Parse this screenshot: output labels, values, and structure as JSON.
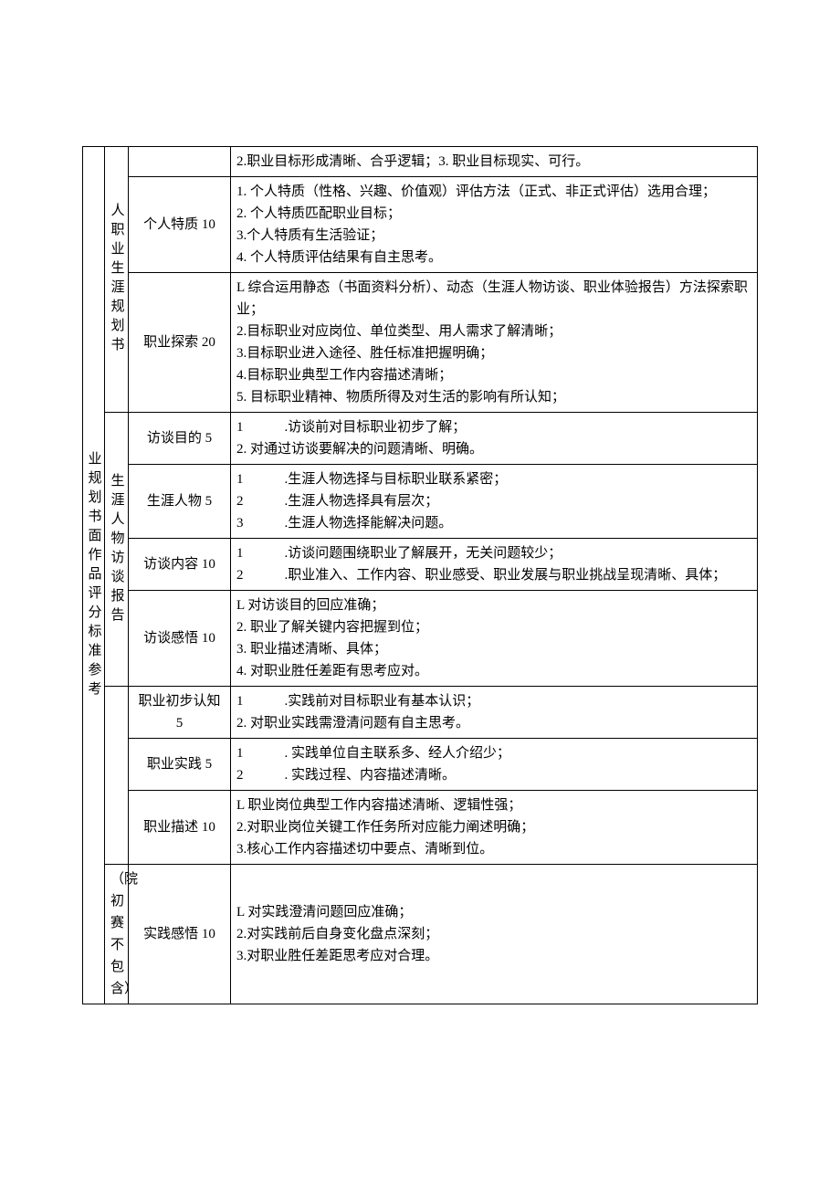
{
  "colA_label": "业规划书面作品评分标准参考",
  "colB_top_label": "人职业生涯规划书",
  "colB_mid_label": "生涯人物访谈报告",
  "colB_bottom_note": "（院初赛不包含）",
  "rows": [
    {
      "criteria": "",
      "detail": "2.职业目标形成清晰、合乎逻辑；3. 职业目标现实、可行。"
    },
    {
      "criteria": "个人特质 10",
      "detail": "1. 个人特质（性格、兴趣、价值观）评估方法（正式、非正式评估）选用合理；\n2. 个人特质匹配职业目标；\n3.个人特质有生活验证；\n4. 个人特质评估结果有自主思考。"
    },
    {
      "criteria": "职业探索 20",
      "detail": "L 综合运用静态（书面资料分析）、动态（生涯人物访谈、职业体验报告）方法探索职业；\n2.目标职业对应岗位、单位类型、用人需求了解清晰；\n3.目标职业进入途径、胜任标准把握明确；\n4.目标职业典型工作内容描述清晰；\n5. 目标职业精神、物质所得及对生活的影响有所认知；"
    },
    {
      "criteria": "访谈目的 5",
      "detail": "1　　　.访谈前对目标职业初步了解；\n2. 对通过访谈要解决的问题清晰、明确。"
    },
    {
      "criteria": "生涯人物 5",
      "detail": "1　　　.生涯人物选择与目标职业联系紧密；\n2　　　.生涯人物选择具有层次；\n3　　　.生涯人物选择能解决问题。"
    },
    {
      "criteria": "访谈内容 10",
      "detail": "1　　　.访谈问题围绕职业了解展开，无关问题较少；\n2　　　.职业准入、工作内容、职业感受、职业发展与职业挑战呈现清晰、具体；"
    },
    {
      "criteria": "访谈感悟 10",
      "detail": "L 对访谈目的回应准确；\n2. 职业了解关键内容把握到位；\n3. 职业描述清晰、具体；\n4. 对职业胜任差距有思考应对。"
    },
    {
      "criteria": "职业初步认知 5",
      "detail": "1　　　.实践前对目标职业有基本认识；\n2. 对职业实践需澄清问题有自主思考。"
    },
    {
      "criteria": "职业实践 5",
      "detail": "1　　　. 实践单位自主联系多、经人介绍少；\n2　　　. 实践过程、内容描述清晰。"
    },
    {
      "criteria": "职业描述 10",
      "detail": "L 职业岗位典型工作内容描述清晰、逻辑性强；\n2.对职业岗位关键工作任务所对应能力阐述明确；\n3.核心工作内容描述切中要点、清晰到位。"
    },
    {
      "criteria": "实践感悟 10",
      "detail": "L 对实践澄清问题回应准确；\n2.对实践前后自身变化盘点深刻；\n3.对职业胜任差距思考应对合理。"
    }
  ]
}
